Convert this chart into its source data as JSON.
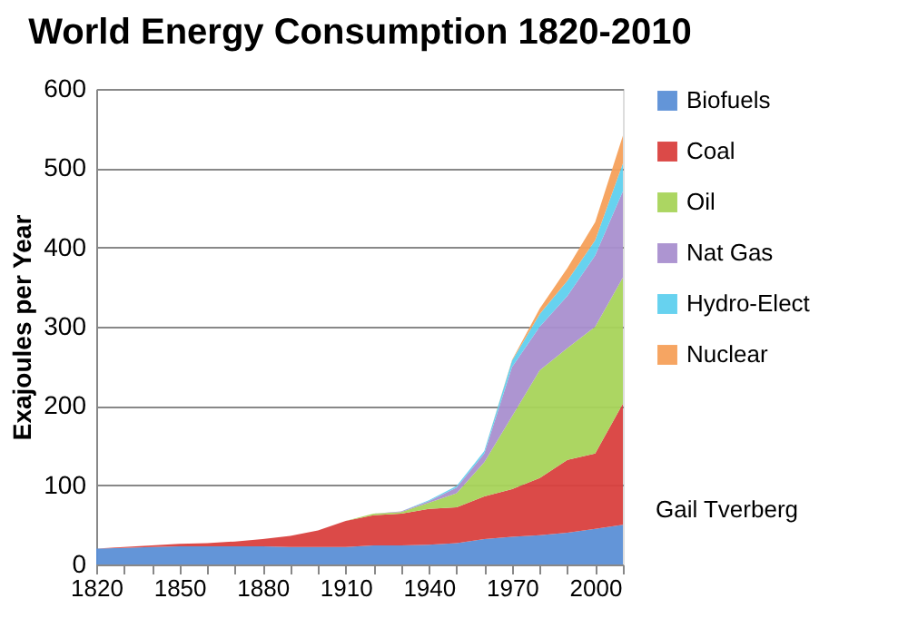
{
  "chart_data": {
    "type": "area",
    "stacked": true,
    "title": "World Energy Consumption 1820-2010",
    "ylabel": "Exajoules per Year",
    "x": [
      1820,
      1830,
      1840,
      1850,
      1860,
      1870,
      1880,
      1890,
      1900,
      1910,
      1920,
      1930,
      1940,
      1950,
      1960,
      1970,
      1980,
      1990,
      2000,
      2010
    ],
    "series": [
      {
        "name": "Biofuels",
        "color": "#5b8fd6",
        "values": [
          20,
          21,
          22,
          23,
          23,
          23,
          23,
          22,
          22,
          22,
          24,
          24,
          25,
          27,
          32,
          35,
          37,
          40,
          45,
          50
        ]
      },
      {
        "name": "Coal",
        "color": "#d9403e",
        "values": [
          0,
          1,
          2,
          3,
          4,
          6,
          9,
          14,
          21,
          33,
          38,
          40,
          45,
          45,
          54,
          60,
          72,
          92,
          95,
          153
        ]
      },
      {
        "name": "Oil",
        "color": "#a8d45a",
        "values": [
          0,
          0,
          0,
          0,
          0,
          0,
          0,
          0,
          0,
          0,
          2,
          2,
          8,
          18,
          43,
          92,
          136,
          141,
          160,
          159
        ]
      },
      {
        "name": "Nat Gas",
        "color": "#a98fcf",
        "values": [
          0,
          0,
          0,
          0,
          0,
          0,
          0,
          0,
          0,
          0,
          0,
          1,
          2,
          7,
          11,
          62,
          55,
          66,
          90,
          109
        ]
      },
      {
        "name": "Hydro-Elect",
        "color": "#5fd0ee",
        "values": [
          0,
          0,
          0,
          0,
          0,
          0,
          0,
          0,
          0,
          0,
          0,
          0,
          1,
          2,
          3,
          8,
          16,
          19,
          19,
          35
        ]
      },
      {
        "name": "Nuclear",
        "color": "#f5a05a",
        "values": [
          0,
          0,
          0,
          0,
          0,
          0,
          0,
          0,
          0,
          0,
          0,
          0,
          0,
          0,
          0,
          1,
          7,
          16,
          23,
          35
        ]
      }
    ],
    "xlim": [
      1820,
      2010
    ],
    "xticks": [
      1820,
      {
        "value": 1830,
        "label": null
      },
      {
        "value": 1840,
        "label": null
      },
      1850,
      {
        "value": 1860,
        "label": null
      },
      {
        "value": 1870,
        "label": null
      },
      1880,
      {
        "value": 1890,
        "label": null
      },
      {
        "value": 1900,
        "label": null
      },
      1910,
      {
        "value": 1920,
        "label": null
      },
      {
        "value": 1930,
        "label": null
      },
      1940,
      {
        "value": 1950,
        "label": null
      },
      {
        "value": 1960,
        "label": null
      },
      1970,
      {
        "value": 1980,
        "label": null
      },
      {
        "value": 1990,
        "label": null
      },
      2000,
      {
        "value": 2010,
        "label": null
      }
    ],
    "ylim": [
      0,
      600
    ],
    "yticks": [
      0,
      100,
      200,
      300,
      400,
      500,
      600
    ],
    "grid": "y",
    "legend": "right",
    "annotations": [
      "Gail Tverberg"
    ]
  }
}
